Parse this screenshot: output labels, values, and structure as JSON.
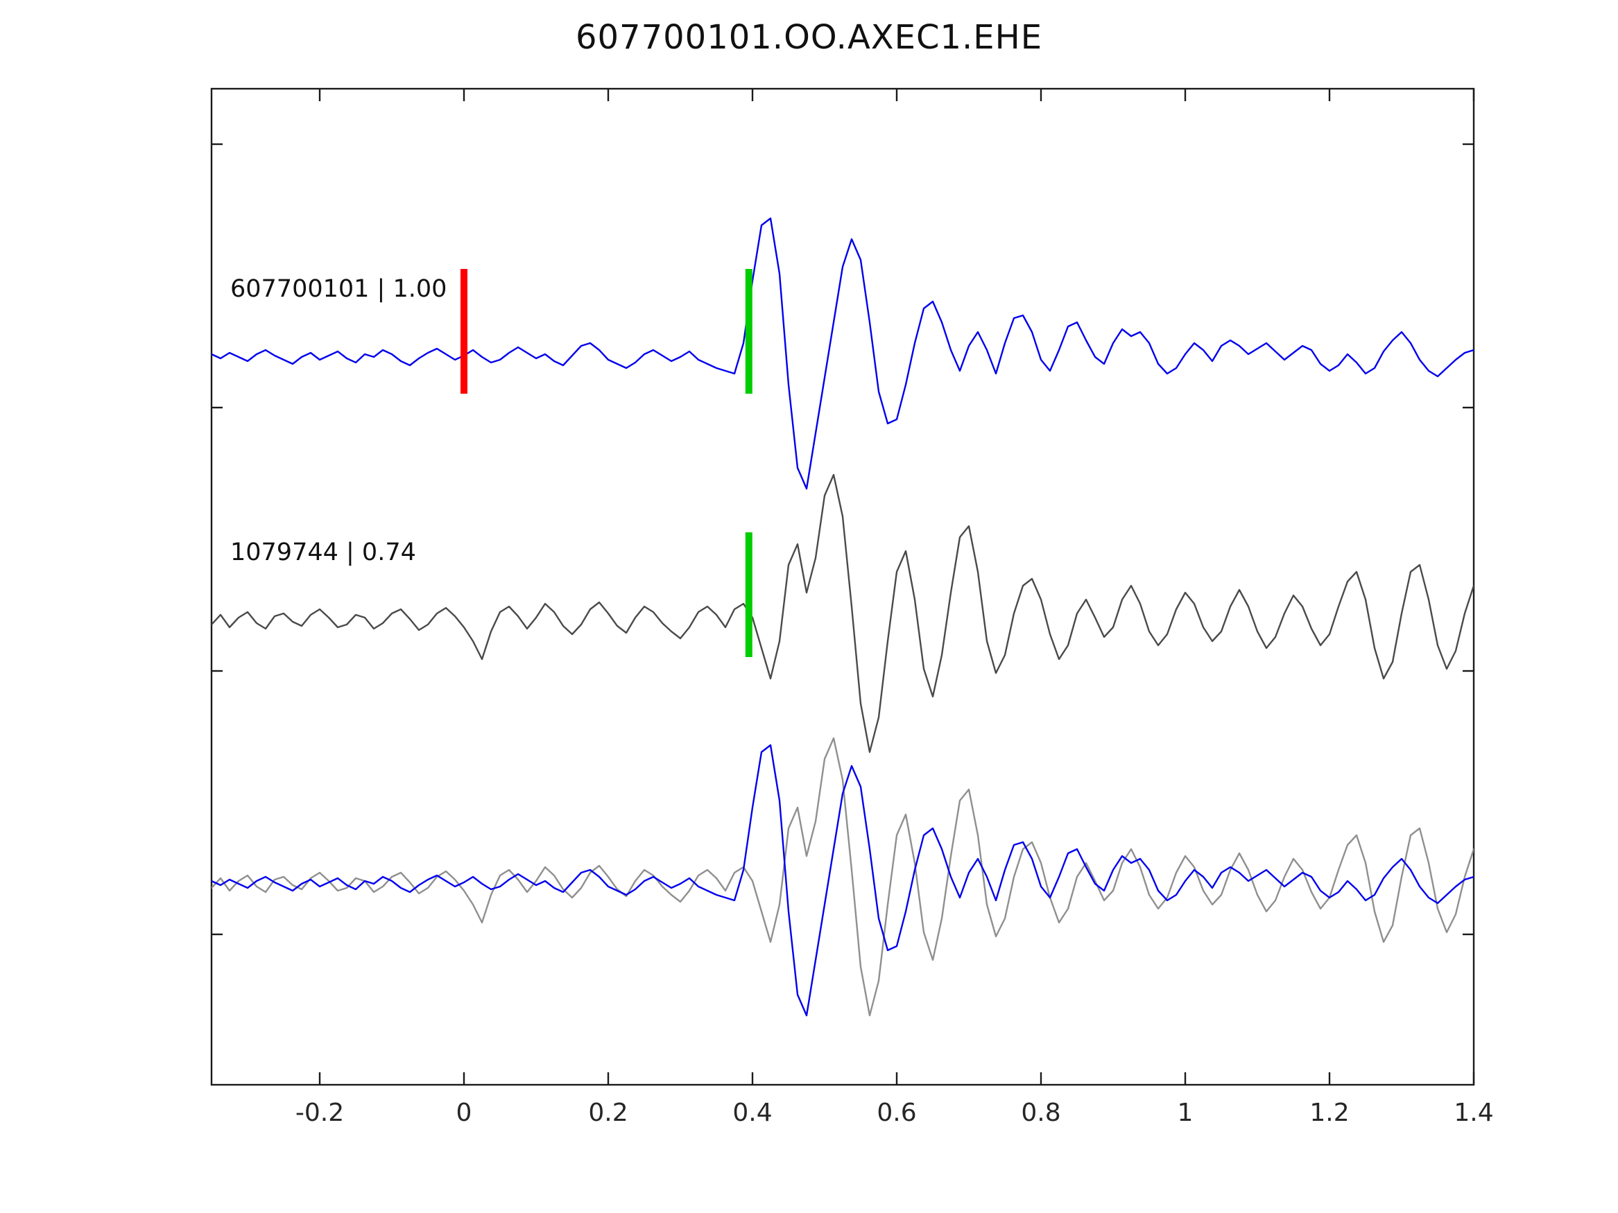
{
  "chart_data": {
    "type": "line",
    "title": "607700101.OO.AXEC1.EHE",
    "xlabel": "",
    "ylabel": "",
    "xlim": [
      -0.35,
      1.4
    ],
    "x_start": -0.35,
    "x_step": 0.0125,
    "x_tick_values": [
      -0.2,
      0,
      0.2,
      0.4,
      0.6,
      0.8,
      1,
      1.2,
      1.4
    ],
    "x_tick_labels": [
      "-0.2",
      "0",
      "0.2",
      "0.4",
      "0.6",
      "0.8",
      "1",
      "1.2",
      "1.4"
    ],
    "grid": false,
    "legend_position": "none",
    "rows": [
      {
        "label": "607700101 | 1.00",
        "traces": [
          {
            "series": "template"
          }
        ],
        "markers": [
          {
            "x": 0,
            "color": "#ff0000",
            "name": "pick-marker-red"
          },
          {
            "x": 0.395,
            "color": "#00cc00",
            "name": "pick-marker-green-top"
          }
        ]
      },
      {
        "label": "1079744 | 0.74",
        "traces": [
          {
            "series": "candidate"
          }
        ],
        "markers": [
          {
            "x": 0.395,
            "color": "#00cc00",
            "name": "pick-marker-green-middle"
          }
        ]
      },
      {
        "label": "",
        "traces": [
          {
            "series": "candidate",
            "color": "#8f8f8f"
          },
          {
            "series": "template"
          }
        ],
        "markers": []
      }
    ],
    "series": [
      {
        "name": "template",
        "color": "#0000ee",
        "values": [
          0.02,
          -0.01,
          0.03,
          0,
          -0.03,
          0.02,
          0.05,
          0.01,
          -0.02,
          -0.05,
          0,
          0.03,
          -0.02,
          0.01,
          0.04,
          -0.01,
          -0.04,
          0.02,
          0,
          0.05,
          0.02,
          -0.03,
          -0.06,
          -0.01,
          0.03,
          0.06,
          0.02,
          -0.02,
          0.01,
          0.05,
          0,
          -0.04,
          -0.02,
          0.03,
          0.07,
          0.03,
          -0.01,
          0.02,
          -0.03,
          -0.06,
          0.01,
          0.08,
          0.1,
          0.05,
          -0.02,
          -0.05,
          -0.08,
          -0.04,
          0.02,
          0.05,
          0.01,
          -0.03,
          0,
          0.04,
          -0.02,
          -0.05,
          -0.08,
          -0.1,
          -0.12,
          0.1,
          0.55,
          0.95,
          1,
          0.6,
          -0.2,
          -0.8,
          -0.95,
          -0.55,
          -0.15,
          0.25,
          0.65,
          0.85,
          0.7,
          0.25,
          -0.25,
          -0.48,
          -0.45,
          -0.2,
          0.1,
          0.35,
          0.4,
          0.25,
          0.05,
          -0.1,
          0.08,
          0.18,
          0.05,
          -0.12,
          0.1,
          0.28,
          0.3,
          0.18,
          -0.02,
          -0.1,
          0.05,
          0.22,
          0.25,
          0.12,
          0,
          -0.05,
          0.1,
          0.2,
          0.15,
          0.18,
          0.1,
          -0.05,
          -0.12,
          -0.08,
          0.02,
          0.1,
          0.05,
          -0.03,
          0.08,
          0.12,
          0.08,
          0.02,
          0.06,
          0.1,
          0.04,
          -0.02,
          0.03,
          0.08,
          0.05,
          -0.05,
          -0.1,
          -0.06,
          0.02,
          -0.04,
          -0.12,
          -0.08,
          0.04,
          0.12,
          0.18,
          0.1,
          -0.02,
          -0.1,
          -0.14,
          -0.08,
          -0.02,
          0.03,
          0.05
        ]
      },
      {
        "name": "candidate",
        "color": "#4a4a4a",
        "values": [
          -0.03,
          0.04,
          -0.05,
          0.02,
          0.06,
          -0.02,
          -0.06,
          0.03,
          0.05,
          -0.01,
          -0.04,
          0.04,
          0.08,
          0.02,
          -0.05,
          -0.03,
          0.04,
          0.02,
          -0.06,
          -0.02,
          0.05,
          0.08,
          0.01,
          -0.07,
          -0.03,
          0.05,
          0.09,
          0.03,
          -0.05,
          -0.15,
          -0.28,
          -0.08,
          0.06,
          0.1,
          0.03,
          -0.06,
          0.02,
          0.12,
          0.06,
          -0.04,
          -0.1,
          -0.03,
          0.08,
          0.13,
          0.05,
          -0.04,
          -0.09,
          0.02,
          0.1,
          0.06,
          -0.02,
          -0.08,
          -0.13,
          -0.05,
          0.06,
          0.1,
          0.04,
          -0.05,
          0.08,
          0.12,
          0.02,
          -0.2,
          -0.42,
          -0.15,
          0.4,
          0.55,
          0.2,
          0.45,
          0.9,
          1.05,
          0.75,
          0.1,
          -0.6,
          -0.95,
          -0.7,
          -0.15,
          0.35,
          0.5,
          0.15,
          -0.35,
          -0.55,
          -0.25,
          0.2,
          0.6,
          0.68,
          0.35,
          -0.15,
          -0.38,
          -0.25,
          0.05,
          0.25,
          0.3,
          0.15,
          -0.1,
          -0.28,
          -0.18,
          0.05,
          0.15,
          0.02,
          -0.12,
          -0.05,
          0.15,
          0.25,
          0.12,
          -0.08,
          -0.18,
          -0.1,
          0.08,
          0.2,
          0.12,
          -0.05,
          -0.15,
          -0.08,
          0.1,
          0.22,
          0.1,
          -0.08,
          -0.2,
          -0.12,
          0.05,
          0.18,
          0.1,
          -0.06,
          -0.18,
          -0.1,
          0.1,
          0.28,
          0.35,
          0.15,
          -0.2,
          -0.42,
          -0.3,
          0.05,
          0.35,
          0.4,
          0.15,
          -0.18,
          -0.35,
          -0.22,
          0.05,
          0.25
        ]
      }
    ]
  },
  "colors": {
    "spine": "#1a1a1a",
    "tick_label": "#262626",
    "row_label": "#111111",
    "background": "#ffffff"
  }
}
